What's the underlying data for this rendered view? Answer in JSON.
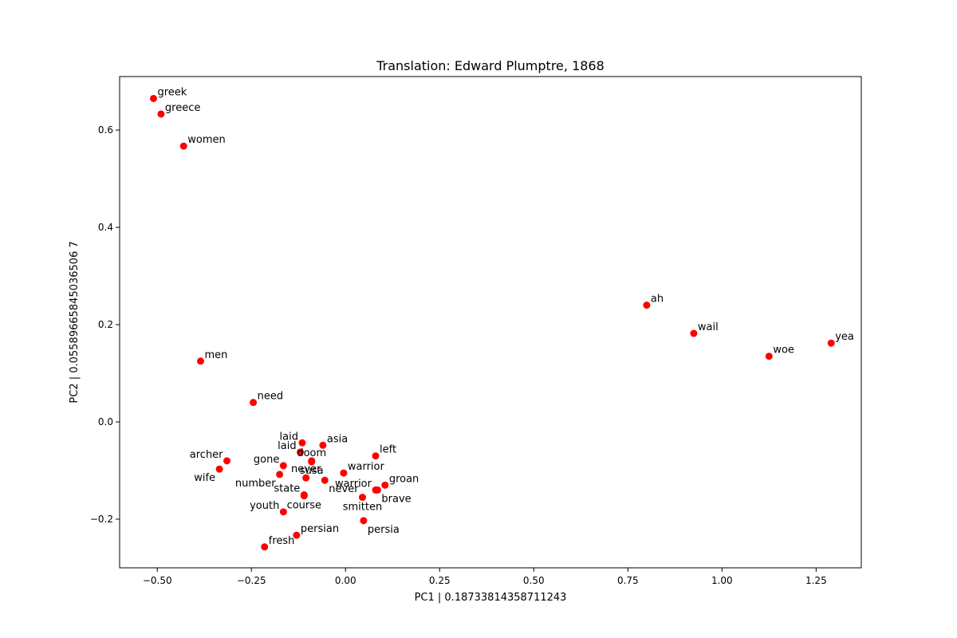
{
  "chart_data": {
    "type": "scatter",
    "title": "Translation: Edward Plumptre, 1868",
    "xlabel": "PC1 | 0.18733814358711243",
    "ylabel": "PC2 | 0.05589665845036506 7",
    "xlim": [
      -0.6,
      1.37
    ],
    "ylim": [
      -0.3,
      0.71
    ],
    "xticks": [
      -0.5,
      -0.25,
      0.0,
      0.25,
      0.5,
      0.75,
      1.0,
      1.25
    ],
    "xtick_labels": [
      "−0.50",
      "−0.25",
      "0.00",
      "0.25",
      "0.50",
      "0.75",
      "1.00",
      "1.25"
    ],
    "yticks": [
      -0.2,
      0.0,
      0.2,
      0.4,
      0.6
    ],
    "ytick_labels": [
      "−0.2",
      "0.0",
      "0.2",
      "0.4",
      "0.6"
    ],
    "grid": false,
    "marker_color": "#ff0000",
    "points": [
      {
        "label": "greek",
        "x": -0.51,
        "y": 0.665,
        "pos": "ur"
      },
      {
        "label": "greece",
        "x": -0.49,
        "y": 0.633,
        "pos": "ur"
      },
      {
        "label": "women",
        "x": -0.43,
        "y": 0.567,
        "pos": "ur"
      },
      {
        "label": "men",
        "x": -0.385,
        "y": 0.125,
        "pos": "ur"
      },
      {
        "label": "need",
        "x": -0.245,
        "y": 0.04,
        "pos": "ur"
      },
      {
        "label": "archer",
        "x": -0.315,
        "y": -0.08,
        "pos": "ul"
      },
      {
        "label": "wife",
        "x": -0.335,
        "y": -0.097,
        "pos": "ll"
      },
      {
        "label": "laid",
        "x": -0.115,
        "y": -0.043,
        "pos": "ul"
      },
      {
        "label": "laid",
        "x": -0.12,
        "y": -0.062,
        "pos": "ul"
      },
      {
        "label": "asia",
        "x": -0.06,
        "y": -0.048,
        "pos": "ur"
      },
      {
        "label": "doom",
        "x": -0.09,
        "y": -0.082,
        "pos": "cu"
      },
      {
        "label": "gone",
        "x": -0.165,
        "y": -0.09,
        "pos": "ul"
      },
      {
        "label": "susa",
        "x": -0.09,
        "y": -0.08,
        "pos": "cd"
      },
      {
        "label": "number",
        "x": -0.175,
        "y": -0.108,
        "pos": "ll"
      },
      {
        "label": "never",
        "x": -0.105,
        "y": -0.115,
        "pos": "cu"
      },
      {
        "label": "warrior",
        "x": -0.005,
        "y": -0.105,
        "pos": "ur"
      },
      {
        "label": "warrior",
        "x": 0.08,
        "y": -0.14,
        "pos": "ul"
      },
      {
        "label": "left",
        "x": 0.08,
        "y": -0.07,
        "pos": "ur"
      },
      {
        "label": "state",
        "x": -0.11,
        "y": -0.15,
        "pos": "ul"
      },
      {
        "label": "never",
        "x": -0.055,
        "y": -0.12,
        "pos": "lr"
      },
      {
        "label": "groan",
        "x": 0.105,
        "y": -0.13,
        "pos": "ur"
      },
      {
        "label": "brave",
        "x": 0.085,
        "y": -0.14,
        "pos": "lr"
      },
      {
        "label": "course",
        "x": -0.11,
        "y": -0.152,
        "pos": "cd"
      },
      {
        "label": "smitten",
        "x": 0.045,
        "y": -0.155,
        "pos": "cd"
      },
      {
        "label": "youth",
        "x": -0.165,
        "y": -0.185,
        "pos": "ul"
      },
      {
        "label": "persia",
        "x": 0.048,
        "y": -0.203,
        "pos": "lr"
      },
      {
        "label": "persian",
        "x": -0.13,
        "y": -0.233,
        "pos": "ur"
      },
      {
        "label": "fresh",
        "x": -0.215,
        "y": -0.257,
        "pos": "ur"
      },
      {
        "label": "ah",
        "x": 0.8,
        "y": 0.24,
        "pos": "ur"
      },
      {
        "label": "wail",
        "x": 0.925,
        "y": 0.182,
        "pos": "ur"
      },
      {
        "label": "woe",
        "x": 1.125,
        "y": 0.135,
        "pos": "ur"
      },
      {
        "label": "yea",
        "x": 1.29,
        "y": 0.162,
        "pos": "ur"
      }
    ]
  }
}
